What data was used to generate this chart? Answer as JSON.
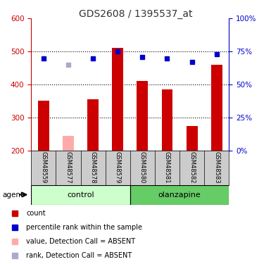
{
  "title": "GDS2608 / 1395537_at",
  "samples": [
    "GSM48559",
    "GSM48577",
    "GSM48578",
    "GSM48579",
    "GSM48580",
    "GSM48581",
    "GSM48582",
    "GSM48583"
  ],
  "count_values": [
    350,
    245,
    355,
    510,
    410,
    385,
    275,
    460
  ],
  "count_absent": [
    false,
    true,
    false,
    false,
    false,
    false,
    false,
    false
  ],
  "rank_values": [
    70,
    65,
    70,
    75,
    71,
    70,
    67,
    73
  ],
  "rank_absent": [
    false,
    true,
    false,
    false,
    false,
    false,
    false,
    false
  ],
  "groups": [
    "control",
    "control",
    "control",
    "control",
    "olanzapine",
    "olanzapine",
    "olanzapine",
    "olanzapine"
  ],
  "ylim_left": [
    200,
    600
  ],
  "ylim_right": [
    0,
    100
  ],
  "yticks_left": [
    200,
    300,
    400,
    500,
    600
  ],
  "yticks_right": [
    0,
    25,
    50,
    75,
    100
  ],
  "bar_color": "#cc0000",
  "bar_color_absent": "#ffaaaa",
  "rank_color": "#0000cc",
  "rank_color_absent": "#aaaacc",
  "control_bg": "#ccffcc",
  "olanzapine_bg": "#66cc66",
  "sample_bg": "#cccccc",
  "title_color": "#333333"
}
